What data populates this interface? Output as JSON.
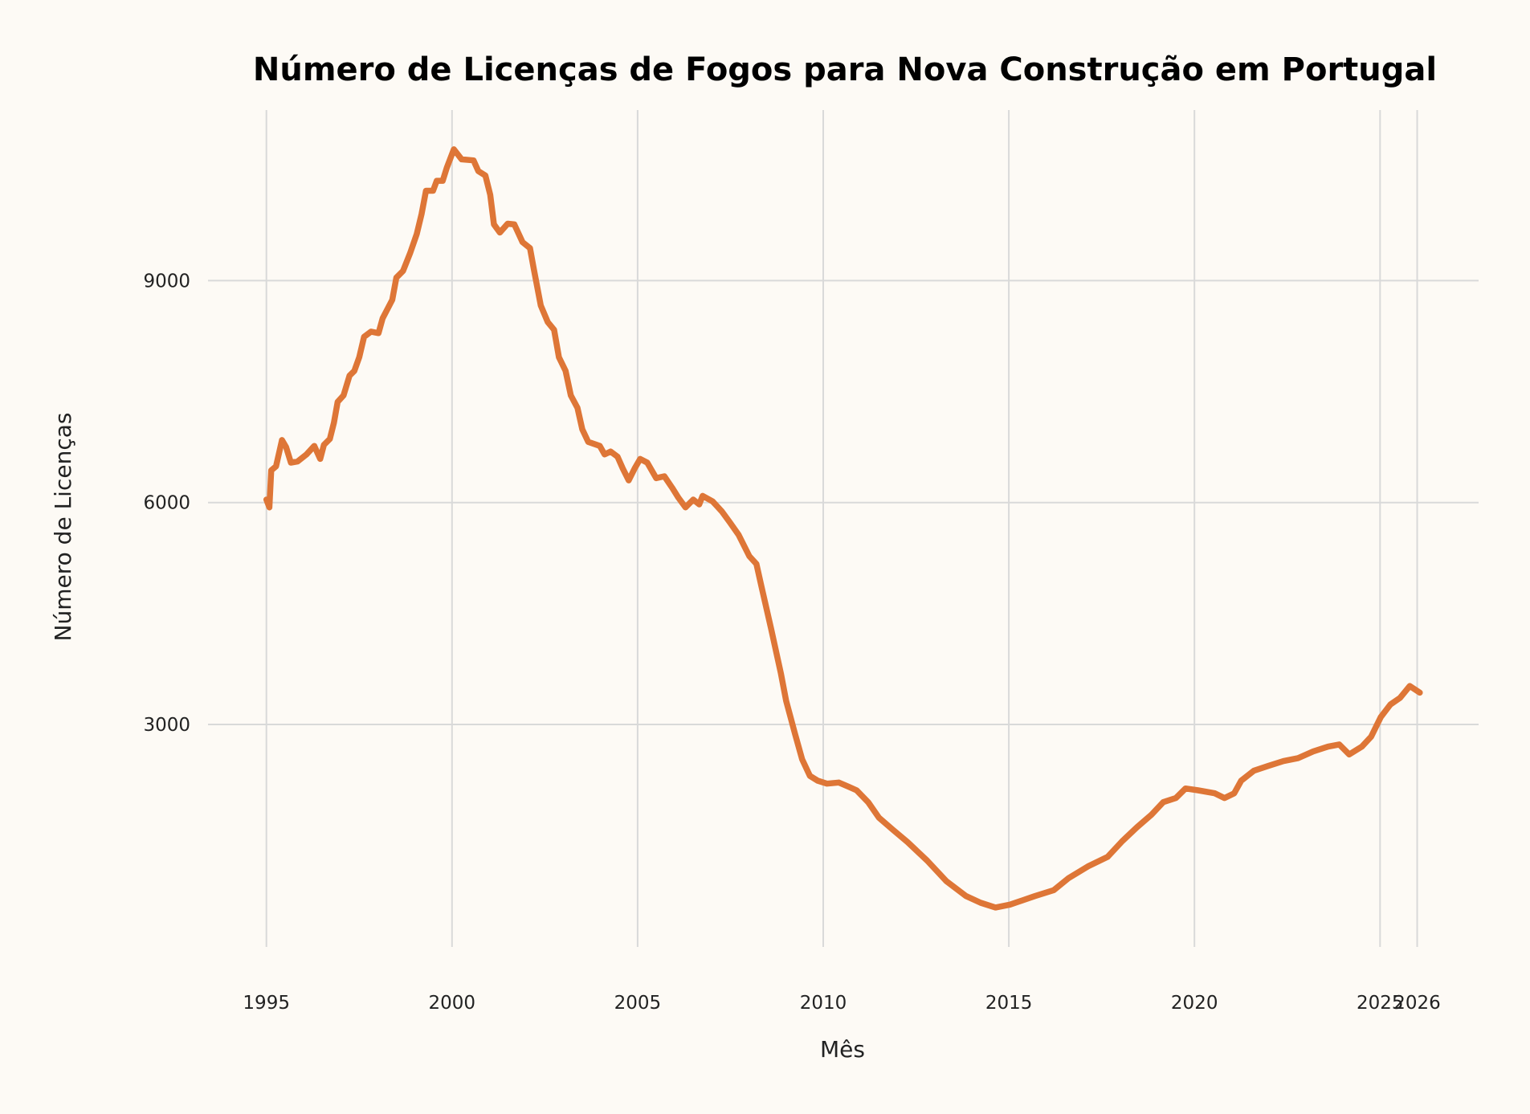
{
  "chart_data": {
    "type": "line",
    "title": "Número de Licenças de Fogos para Nova Construção em Portugal",
    "xlabel": "Mês",
    "ylabel": "Número de Licenças",
    "x_ticks": [
      "1995",
      "2000",
      "2005",
      "2010",
      "2015",
      "2020",
      "2025",
      "2026"
    ],
    "y_ticks": [
      "3000",
      "6000",
      "9000"
    ],
    "xlim": [
      1993.4,
      2027.6
    ],
    "ylim": [
      0,
      11500
    ],
    "grid": true,
    "line_color": "#DE7637",
    "background": "#FDFAF5",
    "grid_color": "#D9D9D9",
    "series": [
      {
        "x": [
          1995.0,
          1995.08,
          1995.13,
          1995.26,
          1995.42,
          1995.53,
          1995.66,
          1995.84,
          1996.08,
          1996.29,
          1996.45,
          1996.55,
          1996.71,
          1996.82,
          1996.92,
          1997.08,
          1997.24,
          1997.37,
          1997.5,
          1997.63,
          1997.82,
          1998.02,
          1998.13,
          1998.39,
          1998.5,
          1998.68,
          1998.87,
          1999.05,
          1999.18,
          1999.3,
          1999.49,
          1999.59,
          1999.75,
          1999.86,
          2000.05,
          2000.26,
          2000.58,
          2000.71,
          2000.9,
          2001.03,
          2001.13,
          2001.29,
          2001.5,
          2001.68,
          2001.9,
          2002.1,
          2002.2,
          2002.39,
          2002.58,
          2002.75,
          2002.88,
          2003.06,
          2003.2,
          2003.38,
          2003.51,
          2003.67,
          2003.98,
          2004.11,
          2004.27,
          2004.46,
          2004.6,
          2004.76,
          2004.92,
          2005.07,
          2005.26,
          2005.5,
          2005.72,
          2005.93,
          2006.1,
          2006.29,
          2006.5,
          2006.66,
          2006.75,
          2007.02,
          2007.27,
          2007.48,
          2007.72,
          2008.01,
          2008.2,
          2008.33,
          2008.6,
          2008.86,
          2009.0,
          2009.24,
          2009.43,
          2009.64,
          2009.85,
          2010.1,
          2010.42,
          2010.68,
          2010.9,
          2011.21,
          2011.5,
          2011.87,
          2012.27,
          2012.8,
          2013.32,
          2013.85,
          2014.24,
          2014.64,
          2015.03,
          2015.7,
          2016.21,
          2016.6,
          2017.13,
          2017.66,
          2018.05,
          2018.45,
          2018.84,
          2019.16,
          2019.5,
          2019.76,
          2020.1,
          2020.55,
          2020.81,
          2021.07,
          2021.26,
          2021.6,
          2021.99,
          2022.4,
          2022.79,
          2023.2,
          2023.6,
          2023.9,
          2024.17,
          2024.51,
          2024.76,
          2025.02,
          2025.28,
          2025.54,
          2025.8,
          2026.07
        ],
        "values": [
          6040,
          5935,
          6435,
          6490,
          6845,
          6750,
          6540,
          6555,
          6650,
          6765,
          6590,
          6780,
          6860,
          7080,
          7360,
          7450,
          7715,
          7780,
          7965,
          8240,
          8310,
          8290,
          8490,
          8740,
          9040,
          9130,
          9370,
          9630,
          9900,
          10215,
          10215,
          10350,
          10350,
          10525,
          10775,
          10640,
          10625,
          10480,
          10420,
          10160,
          9760,
          9650,
          9770,
          9760,
          9520,
          9440,
          9165,
          8665,
          8440,
          8335,
          7965,
          7780,
          7450,
          7280,
          6990,
          6820,
          6765,
          6650,
          6690,
          6620,
          6460,
          6300,
          6460,
          6590,
          6540,
          6330,
          6355,
          6200,
          6065,
          5935,
          6040,
          5975,
          6090,
          6015,
          5880,
          5735,
          5565,
          5275,
          5170,
          4880,
          4285,
          3690,
          3320,
          2872,
          2530,
          2305,
          2240,
          2200,
          2215,
          2160,
          2110,
          1950,
          1740,
          1580,
          1410,
          1160,
          880,
          680,
          590,
          525,
          565,
          680,
          760,
          920,
          1080,
          1210,
          1420,
          1610,
          1780,
          1950,
          2005,
          2135,
          2110,
          2070,
          2005,
          2070,
          2240,
          2375,
          2440,
          2505,
          2545,
          2635,
          2700,
          2730,
          2595,
          2700,
          2835,
          3100,
          3270,
          3360,
          3520,
          3430
        ]
      }
    ]
  }
}
